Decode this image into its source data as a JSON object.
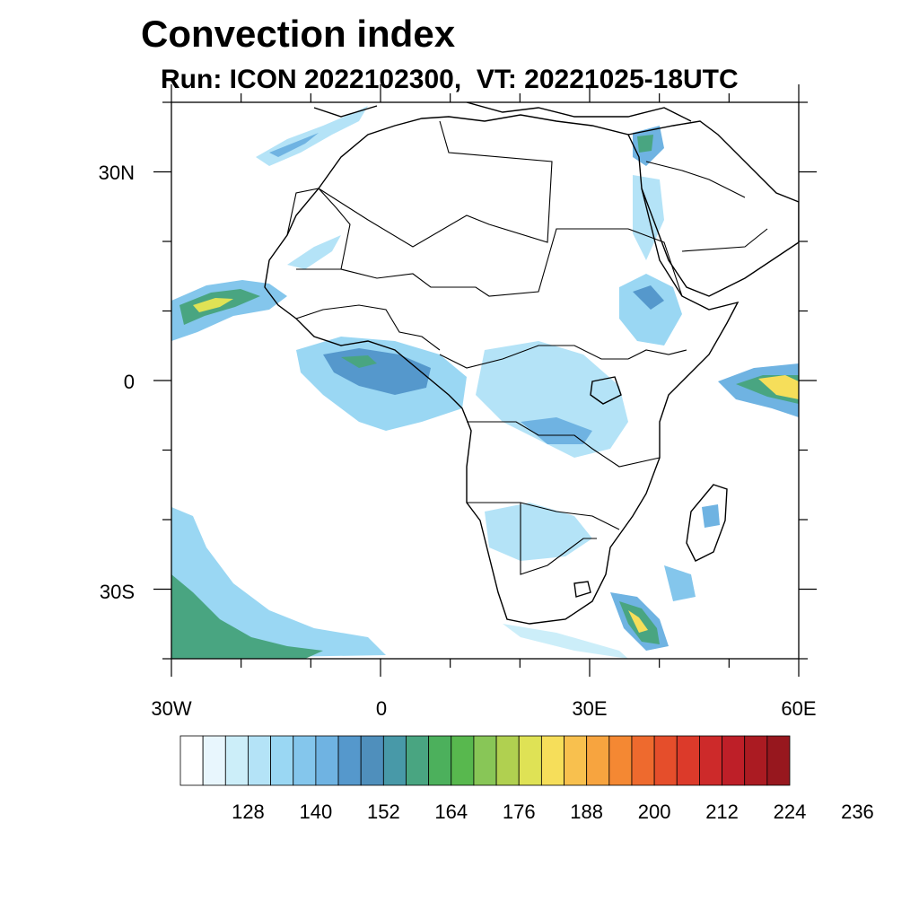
{
  "title": "Convection index",
  "subtitle": "Run: ICON 2022102300,  VT: 20221025-18UTC",
  "map": {
    "region": "Africa",
    "lon_range": [
      -30,
      60
    ],
    "lat_range": [
      -40,
      40
    ],
    "lat_labels": [
      "30N",
      "0",
      "30S"
    ],
    "lon_labels": [
      "30W",
      "0",
      "30E",
      "60E"
    ]
  },
  "colorbar": {
    "colors": [
      "#ffffff",
      "#e8f6fd",
      "#cceef9",
      "#b4e3f7",
      "#9ad7f3",
      "#84c6ec",
      "#6fb3e2",
      "#5598cc",
      "#4f8fbc",
      "#4899a8",
      "#49a581",
      "#4cb05c",
      "#58b84e",
      "#88c657",
      "#b0d050",
      "#dfe255",
      "#f6de5a",
      "#f8c04e",
      "#f7a43f",
      "#f48833",
      "#ee6a2e",
      "#e54e2b",
      "#dc3a2a",
      "#cd2a2a",
      "#be1f28",
      "#ab1b22",
      "#97171e"
    ],
    "tick_labels": [
      "128",
      "140",
      "152",
      "164",
      "176",
      "188",
      "200",
      "212",
      "224",
      "236"
    ]
  }
}
